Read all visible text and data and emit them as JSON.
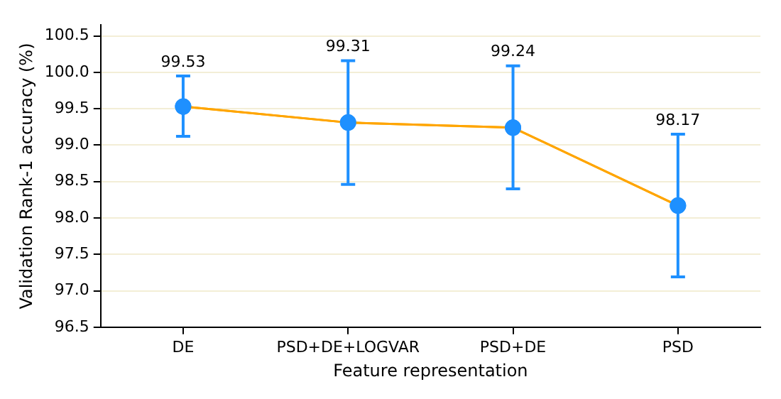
{
  "chart_data": {
    "type": "line",
    "xlabel": "Feature representation",
    "ylabel": "Validation Rank-1 accuracy (%)",
    "categories": [
      "DE",
      "PSD+DE+LOGVAR",
      "PSD+DE",
      "PSD"
    ],
    "series": [
      {
        "color": "#ffa500",
        "colors": [
          "#1e90ff",
          "#1e90ff",
          "#1e90ff",
          "#1e90ff"
        ],
        "values": [
          99.53,
          99.31,
          99.24,
          98.17
        ],
        "errors": [
          [
            99.12,
            99.95
          ],
          [
            98.46,
            100.16
          ],
          [
            98.4,
            100.09
          ],
          [
            97.19,
            99.15
          ]
        ]
      }
    ],
    "annotations": [
      {
        "text": "99.53",
        "x": "DE",
        "y": 99.95
      },
      {
        "text": "99.31",
        "x": "PSD+DE+LOGVAR",
        "y": 100.16
      },
      {
        "text": "99.24",
        "x": "PSD+DE",
        "y": 100.09
      },
      {
        "text": "98.17",
        "x": "PSD",
        "y": 99.15
      }
    ],
    "ylim": [
      96.5,
      100.65
    ],
    "yticks": [
      96.5,
      {
        "value": 97,
        "label": "97.0"
      },
      97.5,
      {
        "value": 98,
        "label": "98.0"
      },
      98.5,
      {
        "value": 99,
        "label": "99.0"
      },
      99.5,
      {
        "value": 100,
        "label": "100.0"
      },
      100.5
    ],
    "grid": "y",
    "marker": "circle",
    "line_style": "solid",
    "legend": false
  }
}
